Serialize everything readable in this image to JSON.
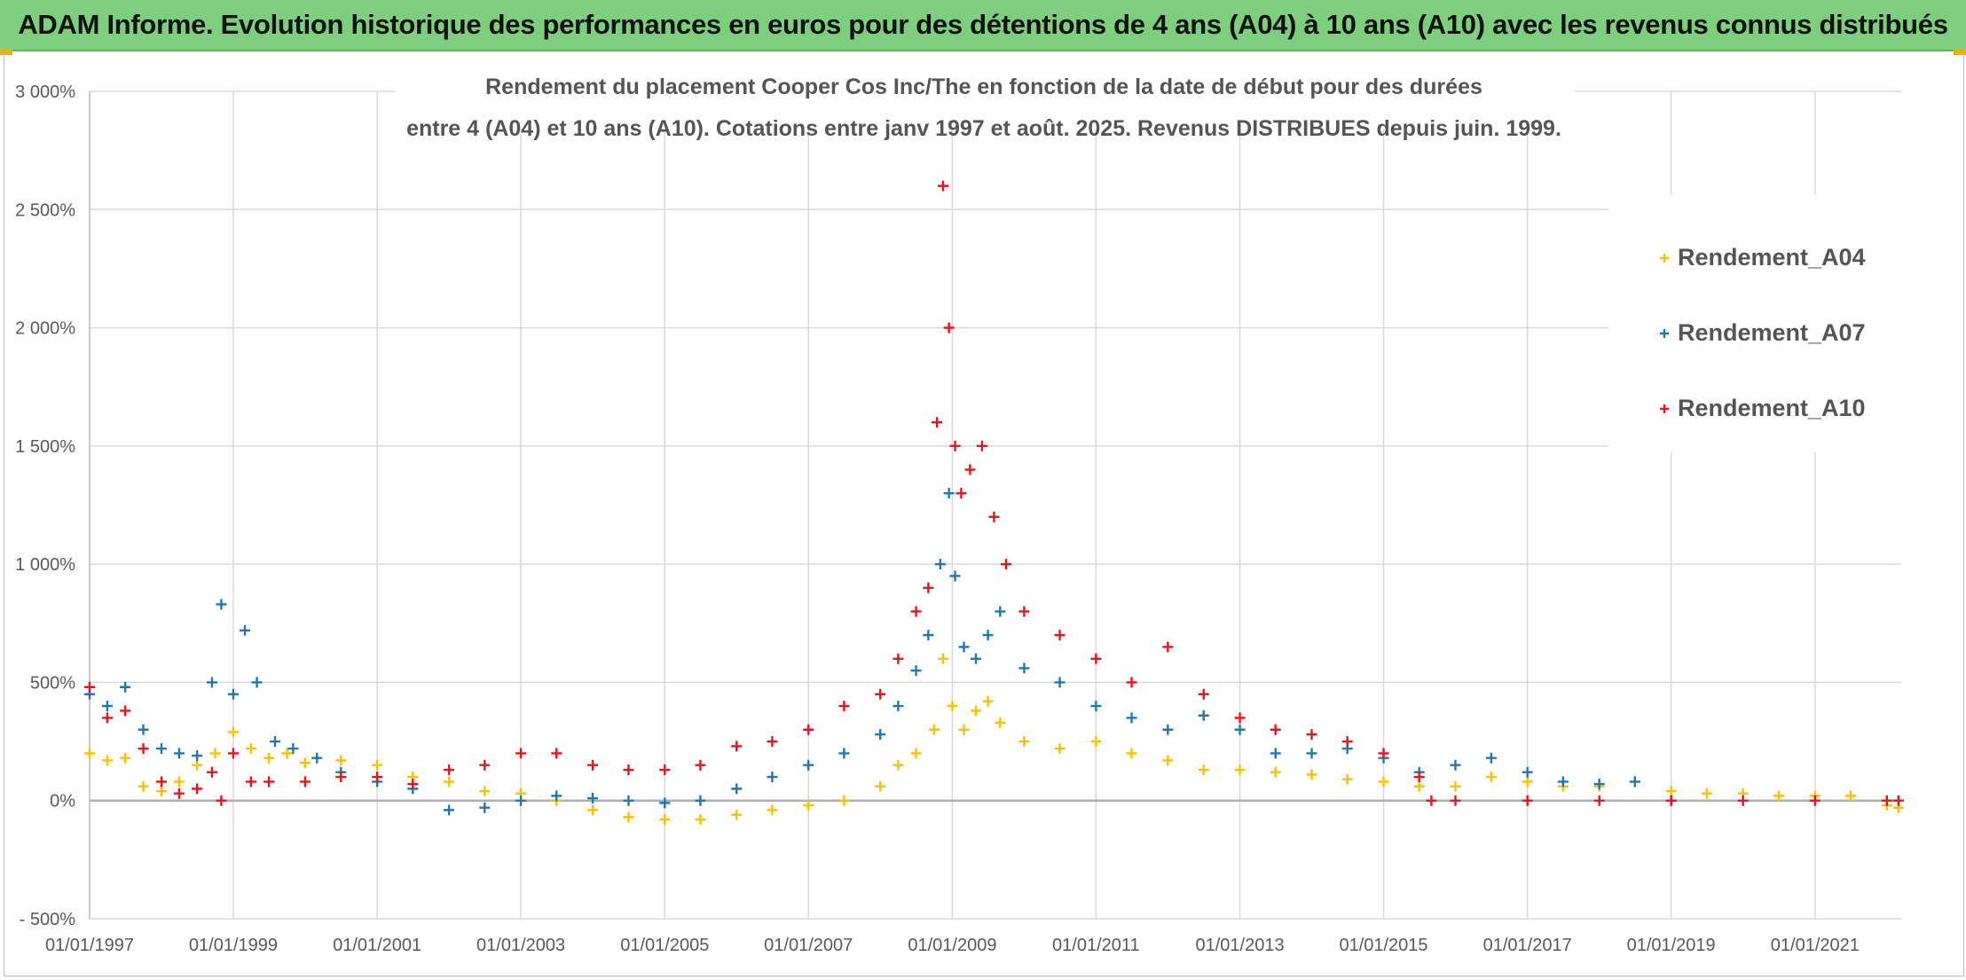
{
  "banner": {
    "title": "ADAM Informe. Evolution historique des performances en euros pour des détentions de 4 ans (A04) à 10 ans (A10) avec les revenus connus distribués"
  },
  "colors": {
    "banner_bg": "#7dcf7d",
    "A04": "#ffc000",
    "A07": "#1f77b4",
    "A10": "#e8141b",
    "grid": "#d9d9d9"
  },
  "chart_data": {
    "type": "scatter",
    "title_line1": "Rendement du placement Cooper Cos Inc/The en fonction de la date de début pour des durées",
    "title_line2": "entre 4 (A04) et 10 ans (A10). Cotations entre janv 1997 et août. 2025. Revenus DISTRIBUES depuis juin. 1999.",
    "xlabel": "",
    "ylabel": "",
    "x_type": "date",
    "xlim": [
      "1997-01-01",
      "2022-03-15"
    ],
    "ylim": [
      -500,
      3000
    ],
    "y_ticks": [
      -500,
      0,
      500,
      1000,
      1500,
      2000,
      2500,
      3000
    ],
    "y_tick_labels": [
      "- 500%",
      "0%",
      "500%",
      "1 000%",
      "1 500%",
      "2 000%",
      "2 500%",
      "3 000%"
    ],
    "x_ticks": [
      "1997-01-01",
      "1999-01-01",
      "2001-01-01",
      "2003-01-01",
      "2005-01-01",
      "2007-01-01",
      "2009-01-01",
      "2011-01-01",
      "2013-01-01",
      "2015-01-01",
      "2017-01-01",
      "2019-01-01",
      "2021-01-01"
    ],
    "x_tick_labels": [
      "01/01/1997",
      "01/01/1999",
      "01/01/2001",
      "01/01/2003",
      "01/01/2005",
      "01/01/2007",
      "01/01/2009",
      "01/01/2011",
      "01/01/2013",
      "01/01/2015",
      "01/01/2017",
      "01/01/2019",
      "01/01/2021"
    ],
    "grid": true,
    "marker": "+",
    "legend_position": "right",
    "series": [
      {
        "name": "Rendement_A04",
        "color": "#ffc000",
        "x": [
          "1997-01-01",
          "1997-04-01",
          "1997-07-01",
          "1997-10-01",
          "1998-01-01",
          "1998-04-01",
          "1998-07-01",
          "1998-10-01",
          "1999-01-01",
          "1999-04-01",
          "1999-07-01",
          "1999-10-01",
          "2000-01-01",
          "2000-07-01",
          "2001-01-01",
          "2001-07-01",
          "2002-01-01",
          "2002-07-01",
          "2003-01-01",
          "2003-07-01",
          "2004-01-01",
          "2004-07-01",
          "2005-01-01",
          "2005-07-01",
          "2006-01-01",
          "2006-07-01",
          "2007-01-01",
          "2007-07-01",
          "2008-01-01",
          "2008-04-01",
          "2008-07-01",
          "2008-10-01",
          "2008-11-15",
          "2009-01-01",
          "2009-03-01",
          "2009-05-01",
          "2009-07-01",
          "2009-09-01",
          "2010-01-01",
          "2010-07-01",
          "2011-01-01",
          "2011-07-01",
          "2012-01-01",
          "2012-07-01",
          "2013-01-01",
          "2013-07-01",
          "2014-01-01",
          "2014-07-01",
          "2015-01-01",
          "2015-07-01",
          "2016-01-01",
          "2016-07-01",
          "2017-01-01",
          "2017-07-01",
          "2018-01-01",
          "2018-07-01",
          "2019-01-01",
          "2019-07-01",
          "2020-01-01",
          "2020-07-01",
          "2021-01-01",
          "2021-07-01",
          "2022-01-01",
          "2022-03-01"
        ],
        "values": [
          200,
          170,
          180,
          60,
          40,
          80,
          150,
          200,
          290,
          220,
          180,
          200,
          160,
          170,
          150,
          100,
          80,
          40,
          30,
          0,
          -40,
          -70,
          -80,
          -80,
          -60,
          -40,
          -20,
          0,
          60,
          150,
          200,
          300,
          600,
          400,
          300,
          380,
          420,
          330,
          250,
          220,
          250,
          200,
          170,
          130,
          130,
          120,
          110,
          90,
          80,
          60,
          60,
          100,
          80,
          60,
          60,
          80,
          40,
          30,
          30,
          20,
          20,
          20,
          -20,
          -30
        ]
      },
      {
        "name": "Rendement_A07",
        "color": "#1f77b4",
        "x": [
          "1997-01-01",
          "1997-04-01",
          "1997-07-01",
          "1997-10-01",
          "1998-01-01",
          "1998-04-01",
          "1998-07-01",
          "1998-09-15",
          "1998-11-01",
          "1999-01-01",
          "1999-03-01",
          "1999-05-01",
          "1999-08-01",
          "1999-11-01",
          "2000-03-01",
          "2000-07-01",
          "2001-01-01",
          "2001-07-01",
          "2002-01-01",
          "2002-07-01",
          "2003-01-01",
          "2003-07-01",
          "2004-01-01",
          "2004-07-01",
          "2005-01-01",
          "2005-07-01",
          "2006-01-01",
          "2006-07-01",
          "2007-01-01",
          "2007-07-01",
          "2008-01-01",
          "2008-04-01",
          "2008-07-01",
          "2008-09-01",
          "2008-11-01",
          "2008-12-15",
          "2009-01-15",
          "2009-03-01",
          "2009-05-01",
          "2009-07-01",
          "2009-09-01",
          "2010-01-01",
          "2010-07-01",
          "2011-01-01",
          "2011-07-01",
          "2012-01-01",
          "2012-07-01",
          "2013-01-01",
          "2013-07-01",
          "2014-01-01",
          "2014-07-01",
          "2015-01-01",
          "2015-07-01",
          "2016-01-01",
          "2016-07-01",
          "2017-01-01",
          "2017-07-01",
          "2018-01-01",
          "2018-07-01",
          "2019-01-01"
        ],
        "values": [
          450,
          400,
          480,
          300,
          220,
          200,
          190,
          500,
          830,
          450,
          720,
          500,
          250,
          220,
          180,
          120,
          80,
          50,
          -40,
          -30,
          0,
          20,
          10,
          0,
          -10,
          0,
          50,
          100,
          150,
          200,
          280,
          400,
          550,
          700,
          1000,
          1300,
          950,
          650,
          600,
          700,
          800,
          560,
          500,
          400,
          350,
          300,
          360,
          300,
          200,
          200,
          220,
          180,
          120,
          150,
          180,
          120,
          80,
          70,
          80,
          0
        ]
      },
      {
        "name": "Rendement_A10",
        "color": "#e8141b",
        "x": [
          "1997-01-01",
          "1997-04-01",
          "1997-07-01",
          "1997-10-01",
          "1998-01-01",
          "1998-04-01",
          "1998-07-01",
          "1998-09-15",
          "1998-11-01",
          "1999-01-01",
          "1999-04-01",
          "1999-07-01",
          "2000-01-01",
          "2000-07-01",
          "2001-01-01",
          "2001-07-01",
          "2002-01-01",
          "2002-07-01",
          "2003-01-01",
          "2003-07-01",
          "2004-01-01",
          "2004-07-01",
          "2005-01-01",
          "2005-07-01",
          "2006-01-01",
          "2006-07-01",
          "2007-01-01",
          "2007-07-01",
          "2008-01-01",
          "2008-04-01",
          "2008-07-01",
          "2008-09-01",
          "2008-10-15",
          "2008-11-15",
          "2008-12-15",
          "2009-01-15",
          "2009-02-15",
          "2009-04-01",
          "2009-06-01",
          "2009-08-01",
          "2009-10-01",
          "2010-01-01",
          "2010-07-01",
          "2011-01-01",
          "2011-07-01",
          "2012-01-01",
          "2012-07-01",
          "2013-01-01",
          "2013-07-01",
          "2014-01-01",
          "2014-07-01",
          "2015-01-01",
          "2015-07-01",
          "2015-09-01",
          "2016-01-01",
          "2017-01-01",
          "2018-01-01",
          "2019-01-01",
          "2020-01-01",
          "2021-01-01",
          "2022-01-01",
          "2022-03-01"
        ],
        "values": [
          480,
          350,
          380,
          220,
          80,
          30,
          50,
          120,
          0,
          200,
          80,
          80,
          80,
          100,
          100,
          70,
          130,
          150,
          200,
          200,
          150,
          130,
          130,
          150,
          230,
          250,
          300,
          400,
          450,
          600,
          800,
          900,
          1600,
          2600,
          2000,
          1500,
          1300,
          1400,
          1500,
          1200,
          1000,
          800,
          700,
          600,
          500,
          650,
          450,
          350,
          300,
          280,
          250,
          200,
          100,
          0,
          0,
          0,
          0,
          0,
          0,
          0,
          0,
          0
        ]
      }
    ]
  }
}
